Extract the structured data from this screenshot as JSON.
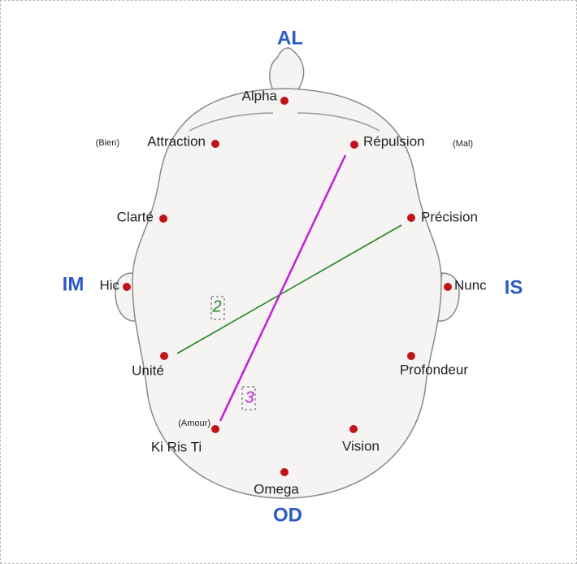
{
  "directions": {
    "top": "AL",
    "bottom": "OD",
    "left": "IM",
    "right": "IS"
  },
  "points": [
    {
      "label": "Alpha"
    },
    {
      "label": "Attraction",
      "note": "(Bien)"
    },
    {
      "label": "Répulsion",
      "note": "(Mal)"
    },
    {
      "label": "Clarté"
    },
    {
      "label": "Précision"
    },
    {
      "label": "Hic"
    },
    {
      "label": "Nunc"
    },
    {
      "label": "Unité"
    },
    {
      "label": "Profondeur"
    },
    {
      "label": "Ki Ris Ti",
      "note": "(Amour)"
    },
    {
      "label": "Vision"
    },
    {
      "label": "Omega"
    }
  ],
  "lines": [
    {
      "label": "2",
      "color": "#1e8a1e"
    },
    {
      "label": "3",
      "color": "#c020d8"
    }
  ]
}
